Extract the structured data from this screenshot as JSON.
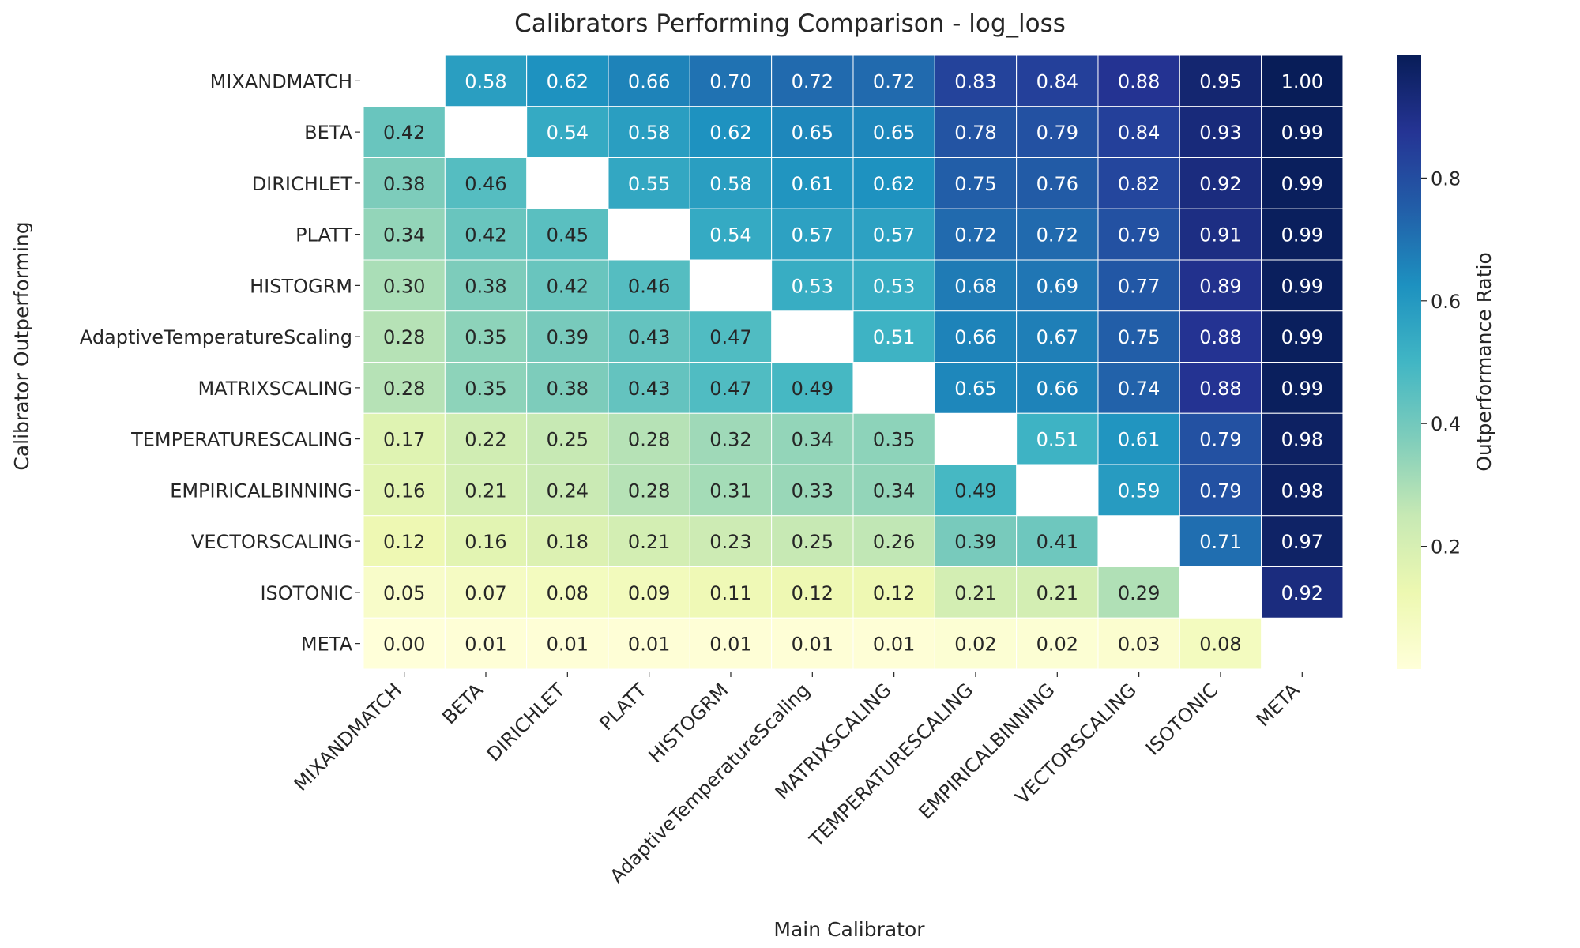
{
  "chart_data": {
    "type": "heatmap",
    "title": "Calibrators Performing Comparison - log_loss",
    "xlabel": "Main Calibrator",
    "ylabel": "Calibrator Outperforming",
    "colorbar_label": "Outperformance Ratio",
    "colormap": "YlGnBu",
    "value_range": [
      0.0,
      1.0
    ],
    "colorbar_ticks": [
      "0.2",
      "0.4",
      "0.6",
      "0.8"
    ],
    "colorbar_tick_values": [
      0.2,
      0.4,
      0.6,
      0.8
    ],
    "x_categories": [
      "MIXANDMATCH",
      "BETA",
      "DIRICHLET",
      "PLATT",
      "HISTOGRM",
      "AdaptiveTemperatureScaling",
      "MATRIXSCALING",
      "TEMPERATURESCALING",
      "EMPIRICALBINNING",
      "VECTORSCALING",
      "ISOTONIC",
      "META"
    ],
    "y_categories": [
      "MIXANDMATCH",
      "BETA",
      "DIRICHLET",
      "PLATT",
      "HISTOGRM",
      "AdaptiveTemperatureScaling",
      "MATRIXSCALING",
      "TEMPERATURESCALING",
      "EMPIRICALBINNING",
      "VECTORSCALING",
      "ISOTONIC",
      "META"
    ],
    "values": [
      [
        null,
        0.58,
        0.62,
        0.66,
        0.7,
        0.72,
        0.72,
        0.83,
        0.84,
        0.88,
        0.95,
        1.0
      ],
      [
        0.42,
        null,
        0.54,
        0.58,
        0.62,
        0.65,
        0.65,
        0.78,
        0.79,
        0.84,
        0.93,
        0.99
      ],
      [
        0.38,
        0.46,
        null,
        0.55,
        0.58,
        0.61,
        0.62,
        0.75,
        0.76,
        0.82,
        0.92,
        0.99
      ],
      [
        0.34,
        0.42,
        0.45,
        null,
        0.54,
        0.57,
        0.57,
        0.72,
        0.72,
        0.79,
        0.91,
        0.99
      ],
      [
        0.3,
        0.38,
        0.42,
        0.46,
        null,
        0.53,
        0.53,
        0.68,
        0.69,
        0.77,
        0.89,
        0.99
      ],
      [
        0.28,
        0.35,
        0.39,
        0.43,
        0.47,
        null,
        0.51,
        0.66,
        0.67,
        0.75,
        0.88,
        0.99
      ],
      [
        0.28,
        0.35,
        0.38,
        0.43,
        0.47,
        0.49,
        null,
        0.65,
        0.66,
        0.74,
        0.88,
        0.99
      ],
      [
        0.17,
        0.22,
        0.25,
        0.28,
        0.32,
        0.34,
        0.35,
        null,
        0.51,
        0.61,
        0.79,
        0.98
      ],
      [
        0.16,
        0.21,
        0.24,
        0.28,
        0.31,
        0.33,
        0.34,
        0.49,
        null,
        0.59,
        0.79,
        0.98
      ],
      [
        0.12,
        0.16,
        0.18,
        0.21,
        0.23,
        0.25,
        0.26,
        0.39,
        0.41,
        null,
        0.71,
        0.97
      ],
      [
        0.05,
        0.07,
        0.08,
        0.09,
        0.11,
        0.12,
        0.12,
        0.21,
        0.21,
        0.29,
        null,
        0.92
      ],
      [
        0.0,
        0.01,
        0.01,
        0.01,
        0.01,
        0.01,
        0.01,
        0.02,
        0.02,
        0.03,
        0.08,
        null
      ]
    ]
  }
}
